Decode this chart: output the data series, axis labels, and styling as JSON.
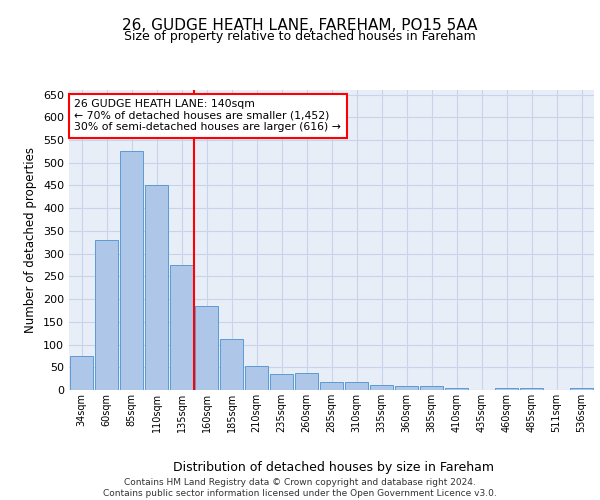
{
  "title1": "26, GUDGE HEATH LANE, FAREHAM, PO15 5AA",
  "title2": "Size of property relative to detached houses in Fareham",
  "xlabel": "Distribution of detached houses by size in Fareham",
  "ylabel": "Number of detached properties",
  "categories": [
    "34sqm",
    "60sqm",
    "85sqm",
    "110sqm",
    "135sqm",
    "160sqm",
    "185sqm",
    "210sqm",
    "235sqm",
    "260sqm",
    "285sqm",
    "310sqm",
    "335sqm",
    "360sqm",
    "385sqm",
    "410sqm",
    "435sqm",
    "460sqm",
    "485sqm",
    "511sqm",
    "536sqm"
  ],
  "values": [
    75,
    330,
    525,
    450,
    275,
    185,
    113,
    52,
    35,
    37,
    18,
    17,
    12,
    9,
    8,
    5,
    0,
    5,
    5,
    0,
    5
  ],
  "bar_color": "#aec6e8",
  "bar_edge_color": "#5b9bd5",
  "grid_color": "#c8d4e8",
  "background_color": "#e8eef8",
  "vline_x": 4.5,
  "vline_color": "red",
  "annotation_text": "26 GUDGE HEATH LANE: 140sqm\n← 70% of detached houses are smaller (1,452)\n30% of semi-detached houses are larger (616) →",
  "annotation_box_color": "white",
  "annotation_box_edge": "red",
  "footer": "Contains HM Land Registry data © Crown copyright and database right 2024.\nContains public sector information licensed under the Open Government Licence v3.0.",
  "ylim": [
    0,
    660
  ],
  "yticks": [
    0,
    50,
    100,
    150,
    200,
    250,
    300,
    350,
    400,
    450,
    500,
    550,
    600,
    650
  ]
}
